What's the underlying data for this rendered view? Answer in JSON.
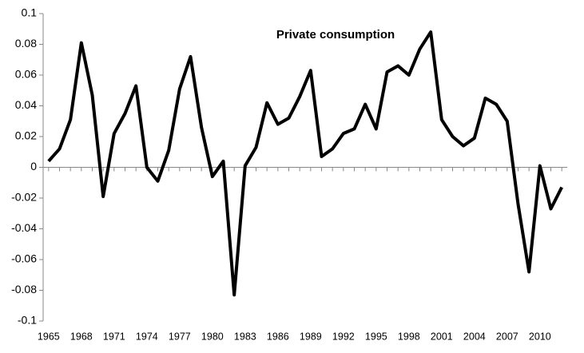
{
  "chart_data": {
    "type": "line",
    "title": "Private consumption",
    "x": [
      1965,
      1966,
      1967,
      1968,
      1969,
      1970,
      1971,
      1972,
      1973,
      1974,
      1975,
      1976,
      1977,
      1978,
      1979,
      1980,
      1981,
      1982,
      1983,
      1984,
      1985,
      1986,
      1987,
      1988,
      1989,
      1990,
      1991,
      1992,
      1993,
      1994,
      1995,
      1996,
      1997,
      1998,
      1999,
      2000,
      2001,
      2002,
      2003,
      2004,
      2005,
      2006,
      2007,
      2008,
      2009,
      2010,
      2011,
      2012
    ],
    "series": [
      {
        "name": "Private consumption",
        "color": "#000000",
        "values": [
          0.004,
          0.012,
          0.031,
          0.081,
          0.047,
          -0.019,
          0.022,
          0.035,
          0.053,
          0.0,
          -0.009,
          0.011,
          0.051,
          0.072,
          0.026,
          -0.006,
          0.004,
          -0.083,
          0.001,
          0.013,
          0.042,
          0.028,
          0.032,
          0.046,
          0.063,
          0.007,
          0.012,
          0.022,
          0.025,
          0.041,
          0.025,
          0.062,
          0.066,
          0.06,
          0.077,
          0.088,
          0.031,
          0.02,
          0.014,
          0.019,
          0.045,
          0.041,
          0.03,
          -0.024,
          -0.068,
          0.001,
          -0.027,
          -0.013
        ]
      }
    ],
    "xlim": [
      1964.5,
      2012.5
    ],
    "xticks": [
      1965,
      1968,
      1971,
      1974,
      1977,
      1980,
      1983,
      1986,
      1989,
      1992,
      1995,
      1998,
      2001,
      2004,
      2007,
      2010
    ],
    "ylim": [
      -0.1,
      0.1
    ],
    "yticks": [
      0.1,
      0.08,
      0.06,
      0.04,
      0.02,
      0,
      -0.02,
      -0.04,
      -0.06,
      -0.08,
      -0.1
    ],
    "grid": false
  }
}
